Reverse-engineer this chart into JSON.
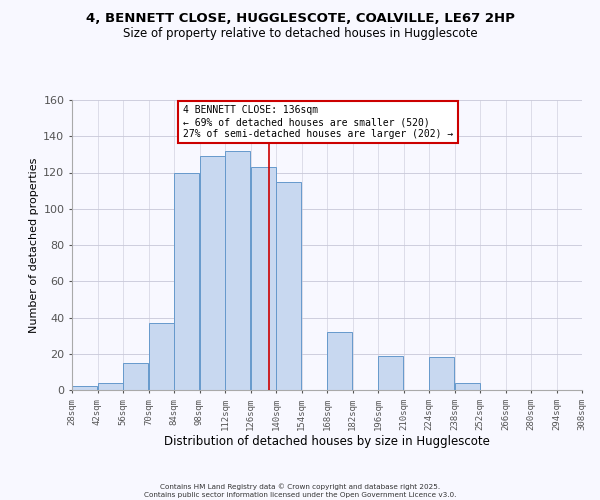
{
  "title": "4, BENNETT CLOSE, HUGGLESCOTE, COALVILLE, LE67 2HP",
  "subtitle": "Size of property relative to detached houses in Hugglescote",
  "xlabel": "Distribution of detached houses by size in Hugglescote",
  "ylabel": "Number of detached properties",
  "bar_color": "#c8d8f0",
  "bar_edge_color": "#6699cc",
  "bin_edges": [
    28,
    42,
    56,
    70,
    84,
    98,
    112,
    126,
    140,
    154,
    168,
    182,
    196,
    210,
    224,
    238,
    252,
    266,
    280,
    294,
    308
  ],
  "bar_heights": [
    2,
    4,
    15,
    37,
    120,
    129,
    132,
    123,
    115,
    0,
    32,
    0,
    19,
    0,
    18,
    4,
    0,
    0,
    0,
    0
  ],
  "vline_x": 136,
  "vline_color": "#cc0000",
  "annotation_text": "4 BENNETT CLOSE: 136sqm\n← 69% of detached houses are smaller (520)\n27% of semi-detached houses are larger (202) →",
  "annotation_box_color": "#ffffff",
  "annotation_box_edge_color": "#cc0000",
  "ylim": [
    0,
    160
  ],
  "yticks": [
    0,
    20,
    40,
    60,
    80,
    100,
    120,
    140,
    160
  ],
  "tick_labels": [
    "28sqm",
    "42sqm",
    "56sqm",
    "70sqm",
    "84sqm",
    "98sqm",
    "112sqm",
    "126sqm",
    "140sqm",
    "154sqm",
    "168sqm",
    "182sqm",
    "196sqm",
    "210sqm",
    "224sqm",
    "238sqm",
    "252sqm",
    "266sqm",
    "280sqm",
    "294sqm",
    "308sqm"
  ],
  "footer_text": "Contains HM Land Registry data © Crown copyright and database right 2025.\nContains public sector information licensed under the Open Government Licence v3.0.",
  "bg_color": "#f8f8ff",
  "grid_color": "#c8c8d8"
}
